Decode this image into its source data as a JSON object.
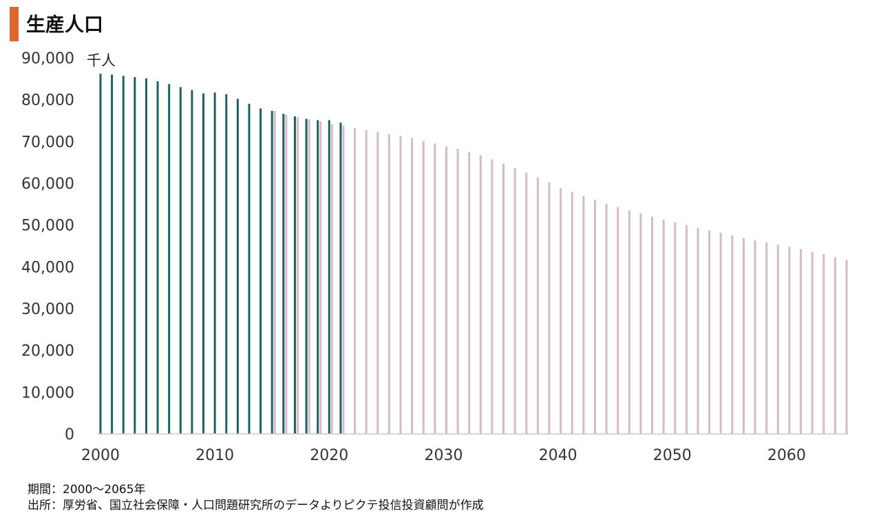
{
  "title": "生産人口",
  "notes": {
    "period": "期間：2000～2065年",
    "source": "出所：厚労省、国立社会保障・人口問題研究所のデータよりピクテ投信投資顧問が作成"
  },
  "colors": {
    "actual": "#1a6363",
    "projection": "#d8b9c8",
    "accent": "#e0652a"
  },
  "chart_data": {
    "type": "bar",
    "unit_label": "千人",
    "ylim": [
      0,
      90000
    ],
    "yticks": [
      0,
      10000,
      20000,
      30000,
      40000,
      50000,
      60000,
      70000,
      80000,
      90000
    ],
    "ytick_labels": [
      "0",
      "10,000",
      "20,000",
      "30,000",
      "40,000",
      "50,000",
      "60,000",
      "70,000",
      "80,000",
      "90,000"
    ],
    "xticks": [
      2000,
      2010,
      2020,
      2030,
      2040,
      2050,
      2060
    ],
    "xlim": [
      2000,
      2065
    ],
    "grid": false,
    "series": [
      {
        "color": "#1a6363",
        "points": [
          [
            2000,
            86200
          ],
          [
            2001,
            86000
          ],
          [
            2002,
            85700
          ],
          [
            2003,
            85400
          ],
          [
            2004,
            85100
          ],
          [
            2005,
            84400
          ],
          [
            2006,
            83700
          ],
          [
            2007,
            83000
          ],
          [
            2008,
            82300
          ],
          [
            2009,
            81500
          ],
          [
            2010,
            81700
          ],
          [
            2011,
            81300
          ],
          [
            2012,
            80200
          ],
          [
            2013,
            79000
          ],
          [
            2014,
            77900
          ],
          [
            2015,
            77300
          ],
          [
            2016,
            76600
          ],
          [
            2017,
            76000
          ],
          [
            2018,
            75400
          ],
          [
            2019,
            75100
          ],
          [
            2020,
            75100
          ],
          [
            2021,
            74500
          ]
        ]
      },
      {
        "color": "#d8b9c8",
        "points": [
          [
            2015,
            77300
          ],
          [
            2016,
            76400
          ],
          [
            2017,
            75800
          ],
          [
            2018,
            75300
          ],
          [
            2019,
            74800
          ],
          [
            2020,
            74100
          ],
          [
            2021,
            73800
          ],
          [
            2022,
            73200
          ],
          [
            2023,
            72700
          ],
          [
            2024,
            72300
          ],
          [
            2025,
            71700
          ],
          [
            2026,
            71300
          ],
          [
            2027,
            70800
          ],
          [
            2028,
            70100
          ],
          [
            2029,
            69500
          ],
          [
            2030,
            68800
          ],
          [
            2031,
            68200
          ],
          [
            2032,
            67400
          ],
          [
            2033,
            66700
          ],
          [
            2034,
            65700
          ],
          [
            2035,
            64700
          ],
          [
            2036,
            63600
          ],
          [
            2037,
            62500
          ],
          [
            2038,
            61400
          ],
          [
            2039,
            60200
          ],
          [
            2040,
            58800
          ],
          [
            2041,
            57900
          ],
          [
            2042,
            56900
          ],
          [
            2043,
            56000
          ],
          [
            2044,
            55100
          ],
          [
            2045,
            54300
          ],
          [
            2046,
            53500
          ],
          [
            2047,
            52800
          ],
          [
            2048,
            52000
          ],
          [
            2049,
            51300
          ],
          [
            2050,
            50600
          ],
          [
            2051,
            50000
          ],
          [
            2052,
            49300
          ],
          [
            2053,
            48700
          ],
          [
            2054,
            48100
          ],
          [
            2055,
            47500
          ],
          [
            2056,
            46900
          ],
          [
            2057,
            46300
          ],
          [
            2058,
            45800
          ],
          [
            2059,
            45300
          ],
          [
            2060,
            44800
          ],
          [
            2061,
            44200
          ],
          [
            2062,
            43600
          ],
          [
            2063,
            43000
          ],
          [
            2064,
            42300
          ],
          [
            2065,
            41600
          ]
        ]
      }
    ]
  }
}
